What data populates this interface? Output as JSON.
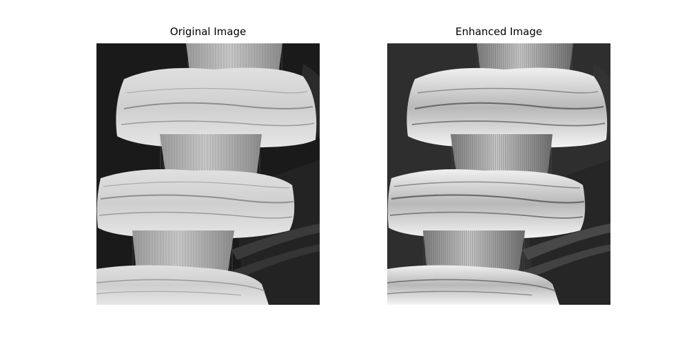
{
  "figure": {
    "panels": [
      {
        "title": "Original Image",
        "variant": "original"
      },
      {
        "title": "Enhanced Image",
        "variant": "enhanced"
      }
    ]
  }
}
